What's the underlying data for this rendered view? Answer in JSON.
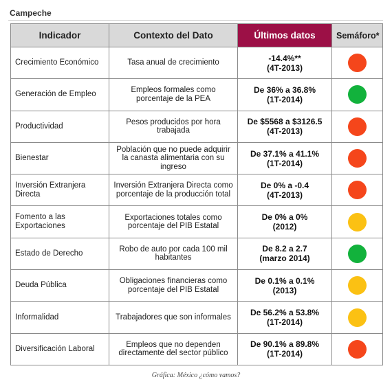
{
  "title": "Campeche",
  "headers": {
    "indicador": "Indicador",
    "contexto": "Contexto del Dato",
    "ultimos": "Últimos datos",
    "semaforo": "Semáforo*"
  },
  "colors": {
    "red": "#f5461b",
    "green": "#12b23c",
    "yellow": "#fbc113",
    "header_highlight": "#9c1046",
    "header_bg": "#d9d9d9"
  },
  "rows": [
    {
      "indicador": "Crecimiento Económico",
      "contexto": "Tasa  anual de crecimiento",
      "dato1": "-14.4%**",
      "dato2": "(4T-2013)",
      "semaforo": "red"
    },
    {
      "indicador": "Generación de Empleo",
      "contexto": "Empleos formales como porcentaje de la PEA",
      "dato1": "De 36% a 36.8%",
      "dato2": "(1T-2014)",
      "semaforo": "green"
    },
    {
      "indicador": "Productividad",
      "contexto": "Pesos producidos por hora trabajada",
      "dato1": "De $5568 a $3126.5",
      "dato2": "(4T-2013)",
      "semaforo": "red"
    },
    {
      "indicador": "Bienestar",
      "contexto": "Población que no puede adquirir la canasta alimentaria con su ingreso",
      "dato1": "De 37.1% a 41.1%",
      "dato2": "(1T-2014)",
      "semaforo": "red"
    },
    {
      "indicador": "Inversión Extranjera Directa",
      "contexto": "Inversión Extranjera Directa como porcentaje de la producción total",
      "dato1": "De 0% a -0.4",
      "dato2": "(4T-2013)",
      "semaforo": "red"
    },
    {
      "indicador": "Fomento a las Exportaciones",
      "contexto": "Exportaciones totales como porcentaje del PIB Estatal",
      "dato1": "De 0% a 0%",
      "dato2": "(2012)",
      "semaforo": "yellow"
    },
    {
      "indicador": "Estado de Derecho",
      "contexto": "Robo de auto por cada 100 mil habitantes",
      "dato1": "De 8.2 a 2.7",
      "dato2": "(marzo 2014)",
      "semaforo": "green"
    },
    {
      "indicador": "Deuda Pública",
      "contexto": "Obligaciones financieras como porcentaje del PIB Estatal",
      "dato1": "De 0.1% a 0.1%",
      "dato2": "(2013)",
      "semaforo": "yellow"
    },
    {
      "indicador": "Informalidad",
      "contexto": "Trabajadores que son informales",
      "dato1": "De 56.2% a 53.8%",
      "dato2": "(1T-2014)",
      "semaforo": "yellow"
    },
    {
      "indicador": "Diversificación Laboral",
      "contexto": "Empleos que no dependen directamente del sector público",
      "dato1": "De 90.1% a 89.8%",
      "dato2": "(1T-2014)",
      "semaforo": "red"
    }
  ],
  "caption": "Gráfica: México ¿cómo vamos?"
}
